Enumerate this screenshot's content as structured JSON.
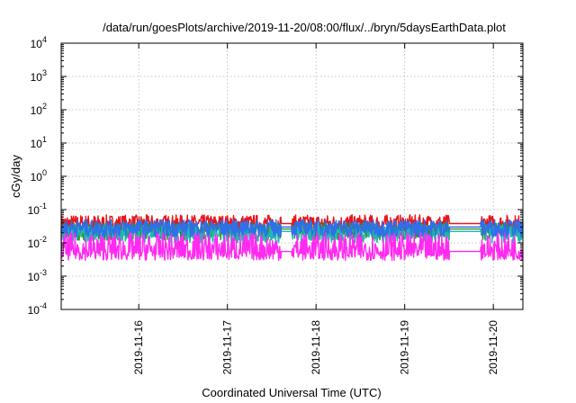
{
  "chart_data": {
    "type": "line",
    "title": "/data/run/goesPlots/archive/2019-11-20/08:00/flux/../bryn/5daysEarthData.plot",
    "xlabel": "Coordinated Universal Time (UTC)",
    "ylabel": "cGy/day",
    "yscale": "log",
    "ylim": [
      0.0001,
      10000
    ],
    "xlim": [
      "2019-11-15 03:00",
      "2019-11-20 08:00"
    ],
    "y_ticks": [
      {
        "value": 0.0001,
        "base": "10",
        "exp": "-4"
      },
      {
        "value": 0.001,
        "base": "10",
        "exp": "-3"
      },
      {
        "value": 0.01,
        "base": "10",
        "exp": "-2"
      },
      {
        "value": 0.1,
        "base": "10",
        "exp": "-1"
      },
      {
        "value": 1,
        "base": "10",
        "exp": "0"
      },
      {
        "value": 10,
        "base": "10",
        "exp": "1"
      },
      {
        "value": 100,
        "base": "10",
        "exp": "2"
      },
      {
        "value": 1000,
        "base": "10",
        "exp": "3"
      },
      {
        "value": 10000,
        "base": "10",
        "exp": "4"
      }
    ],
    "x_ticks": [
      {
        "value": "2019-11-16 00:00",
        "label": "2019-11-16"
      },
      {
        "value": "2019-11-17 00:00",
        "label": "2019-11-17"
      },
      {
        "value": "2019-11-18 00:00",
        "label": "2019-11-18"
      },
      {
        "value": "2019-11-19 00:00",
        "label": "2019-11-19"
      },
      {
        "value": "2019-11-20 00:00",
        "label": "2019-11-20"
      }
    ],
    "grid": true,
    "legend": "none",
    "gaps": [
      [
        "2019-11-17 14:30",
        "2019-11-17 17:30"
      ],
      [
        "2019-11-19 12:00",
        "2019-11-19 20:30"
      ]
    ],
    "series": [
      {
        "color": "#e8161a",
        "values_range": [
          0.02,
          0.07
        ],
        "typical": 0.038
      },
      {
        "color": "#2e8b2e",
        "values_range": [
          0.012,
          0.04
        ],
        "typical": 0.026
      },
      {
        "color": "#1fb8b0",
        "values_range": [
          0.01,
          0.035
        ],
        "typical": 0.022
      },
      {
        "color": "#2f6fe8",
        "values_range": [
          0.015,
          0.05
        ],
        "typical": 0.03
      },
      {
        "color": "#ff2bf0",
        "values_range": [
          0.003,
          0.02
        ],
        "typical": 0.0055
      }
    ]
  }
}
